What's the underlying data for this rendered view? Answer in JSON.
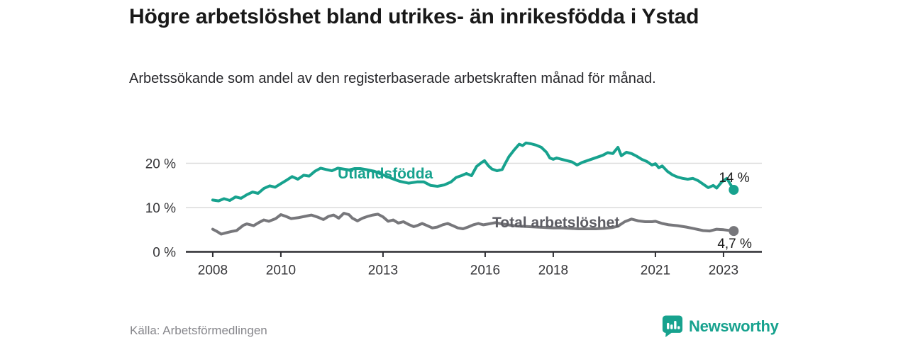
{
  "header": {
    "title": "Högre arbetslöshet bland utrikes- än inrikesfödda i Ystad",
    "subtitle": "Arbetssökande som andel av den registerbaserade arbetskraften månad för månad."
  },
  "footer": {
    "source": "Källa: Arbetsförmedlingen",
    "brand": "Newsworthy"
  },
  "colors": {
    "teal": "#17a28e",
    "gray_line": "#77777b",
    "gray_label": "#5d5d64",
    "axis": "#2e2e33",
    "gridline": "#dcdcdc",
    "tick_label": "#363639",
    "value_label": "#1c1c1c"
  },
  "chart_data": {
    "type": "line",
    "title": "Högre arbetslöshet bland utrikes- än inrikesfödda i Ystad",
    "subtitle": "Arbetssökande som andel av den registerbaserade arbetskraften månad för månad.",
    "xlabel": "",
    "ylabel": "",
    "grid": "horizontal-only",
    "x_range": [
      2007.21,
      2024.13
    ],
    "ylim": [
      0,
      26
    ],
    "x_ticks": [
      {
        "value": 2008,
        "label": "2008"
      },
      {
        "value": 2010,
        "label": "2010"
      },
      {
        "value": 2013,
        "label": "2013"
      },
      {
        "value": 2016,
        "label": "2016"
      },
      {
        "value": 2018,
        "label": "2018"
      },
      {
        "value": 2021,
        "label": "2021"
      },
      {
        "value": 2023,
        "label": "2023"
      }
    ],
    "y_ticks": [
      {
        "value": 0,
        "label": "0 %"
      },
      {
        "value": 10,
        "label": "10 %"
      },
      {
        "value": 20,
        "label": "20 %"
      }
    ],
    "series": [
      {
        "name": "Utlandsfödda",
        "color_key": "teal",
        "label_pos": {
          "x": 2011.67,
          "v": 16.56
        },
        "end_label": "14 %",
        "end_value": 14.0,
        "points": [
          [
            2008.0,
            11.7
          ],
          [
            2008.17,
            11.5
          ],
          [
            2008.33,
            12.0
          ],
          [
            2008.5,
            11.6
          ],
          [
            2008.67,
            12.4
          ],
          [
            2008.83,
            12.1
          ],
          [
            2009.0,
            12.9
          ],
          [
            2009.17,
            13.5
          ],
          [
            2009.33,
            13.2
          ],
          [
            2009.5,
            14.3
          ],
          [
            2009.67,
            14.9
          ],
          [
            2009.83,
            14.6
          ],
          [
            2010.0,
            15.4
          ],
          [
            2010.17,
            16.2
          ],
          [
            2010.33,
            17.0
          ],
          [
            2010.5,
            16.4
          ],
          [
            2010.67,
            17.3
          ],
          [
            2010.83,
            17.1
          ],
          [
            2011.0,
            18.2
          ],
          [
            2011.17,
            18.9
          ],
          [
            2011.33,
            18.6
          ],
          [
            2011.5,
            18.3
          ],
          [
            2011.67,
            18.9
          ],
          [
            2011.83,
            18.7
          ],
          [
            2012.0,
            18.5
          ],
          [
            2012.17,
            18.8
          ],
          [
            2012.33,
            18.8
          ],
          [
            2012.5,
            18.6
          ],
          [
            2012.75,
            18.2
          ],
          [
            2013.0,
            17.4
          ],
          [
            2013.25,
            16.6
          ],
          [
            2013.5,
            15.9
          ],
          [
            2013.75,
            15.5
          ],
          [
            2014.0,
            15.8
          ],
          [
            2014.2,
            15.8
          ],
          [
            2014.4,
            15.0
          ],
          [
            2014.6,
            14.8
          ],
          [
            2014.8,
            15.1
          ],
          [
            2015.0,
            15.8
          ],
          [
            2015.15,
            16.8
          ],
          [
            2015.3,
            17.2
          ],
          [
            2015.45,
            17.7
          ],
          [
            2015.6,
            17.2
          ],
          [
            2015.75,
            19.3
          ],
          [
            2015.9,
            20.2
          ],
          [
            2015.98,
            20.6
          ],
          [
            2016.1,
            19.4
          ],
          [
            2016.2,
            18.7
          ],
          [
            2016.35,
            18.3
          ],
          [
            2016.5,
            18.6
          ],
          [
            2016.6,
            20.1
          ],
          [
            2016.7,
            21.5
          ],
          [
            2016.85,
            23.0
          ],
          [
            2017.0,
            24.3
          ],
          [
            2017.1,
            24.0
          ],
          [
            2017.2,
            24.6
          ],
          [
            2017.35,
            24.4
          ],
          [
            2017.5,
            24.1
          ],
          [
            2017.65,
            23.6
          ],
          [
            2017.8,
            22.5
          ],
          [
            2017.9,
            21.2
          ],
          [
            2018.0,
            20.9
          ],
          [
            2018.1,
            21.2
          ],
          [
            2018.25,
            20.9
          ],
          [
            2018.4,
            20.6
          ],
          [
            2018.55,
            20.3
          ],
          [
            2018.7,
            19.6
          ],
          [
            2018.85,
            20.2
          ],
          [
            2019.0,
            20.6
          ],
          [
            2019.15,
            21.0
          ],
          [
            2019.3,
            21.4
          ],
          [
            2019.45,
            21.8
          ],
          [
            2019.6,
            22.4
          ],
          [
            2019.75,
            22.2
          ],
          [
            2019.9,
            23.6
          ],
          [
            2020.0,
            21.7
          ],
          [
            2020.15,
            22.5
          ],
          [
            2020.3,
            22.2
          ],
          [
            2020.45,
            21.6
          ],
          [
            2020.6,
            20.9
          ],
          [
            2020.75,
            20.4
          ],
          [
            2020.9,
            19.6
          ],
          [
            2021.0,
            19.9
          ],
          [
            2021.1,
            19.0
          ],
          [
            2021.2,
            19.4
          ],
          [
            2021.35,
            18.2
          ],
          [
            2021.5,
            17.4
          ],
          [
            2021.65,
            16.9
          ],
          [
            2021.8,
            16.6
          ],
          [
            2021.95,
            16.4
          ],
          [
            2022.1,
            16.6
          ],
          [
            2022.25,
            16.1
          ],
          [
            2022.4,
            15.3
          ],
          [
            2022.55,
            14.5
          ],
          [
            2022.7,
            15.0
          ],
          [
            2022.8,
            14.4
          ],
          [
            2022.95,
            15.8
          ],
          [
            2023.1,
            16.6
          ],
          [
            2023.3,
            14.0
          ]
        ]
      },
      {
        "name": "Total arbetslöshet",
        "color_key": "gray_line",
        "label_color_key": "gray_label",
        "label_pos": {
          "x": 2016.21,
          "v": 5.52
        },
        "end_label": "4,7 %",
        "end_value": 4.7,
        "points": [
          [
            2008.0,
            5.1
          ],
          [
            2008.1,
            4.7
          ],
          [
            2008.25,
            4.0
          ],
          [
            2008.4,
            4.3
          ],
          [
            2008.55,
            4.6
          ],
          [
            2008.7,
            4.8
          ],
          [
            2008.9,
            6.0
          ],
          [
            2009.0,
            6.3
          ],
          [
            2009.2,
            5.9
          ],
          [
            2009.35,
            6.6
          ],
          [
            2009.5,
            7.2
          ],
          [
            2009.65,
            6.9
          ],
          [
            2009.85,
            7.5
          ],
          [
            2010.0,
            8.4
          ],
          [
            2010.15,
            8.0
          ],
          [
            2010.3,
            7.5
          ],
          [
            2010.5,
            7.7
          ],
          [
            2010.7,
            8.0
          ],
          [
            2010.9,
            8.3
          ],
          [
            2011.1,
            7.8
          ],
          [
            2011.25,
            7.3
          ],
          [
            2011.4,
            8.0
          ],
          [
            2011.55,
            8.3
          ],
          [
            2011.7,
            7.6
          ],
          [
            2011.85,
            8.7
          ],
          [
            2012.0,
            8.4
          ],
          [
            2012.1,
            7.6
          ],
          [
            2012.25,
            7.0
          ],
          [
            2012.4,
            7.6
          ],
          [
            2012.55,
            8.0
          ],
          [
            2012.7,
            8.3
          ],
          [
            2012.85,
            8.5
          ],
          [
            2013.0,
            7.9
          ],
          [
            2013.15,
            6.9
          ],
          [
            2013.3,
            7.2
          ],
          [
            2013.45,
            6.5
          ],
          [
            2013.6,
            6.8
          ],
          [
            2013.75,
            6.2
          ],
          [
            2013.9,
            5.7
          ],
          [
            2014.0,
            5.9
          ],
          [
            2014.15,
            6.4
          ],
          [
            2014.3,
            5.9
          ],
          [
            2014.45,
            5.4
          ],
          [
            2014.6,
            5.6
          ],
          [
            2014.75,
            6.1
          ],
          [
            2014.9,
            6.4
          ],
          [
            2015.05,
            5.9
          ],
          [
            2015.2,
            5.4
          ],
          [
            2015.35,
            5.2
          ],
          [
            2015.5,
            5.6
          ],
          [
            2015.65,
            6.1
          ],
          [
            2015.8,
            6.4
          ],
          [
            2015.95,
            6.1
          ],
          [
            2016.1,
            6.3
          ],
          [
            2016.3,
            6.6
          ],
          [
            2016.5,
            6.3
          ],
          [
            2016.75,
            6.0
          ],
          [
            2017.0,
            5.8
          ],
          [
            2017.25,
            5.7
          ],
          [
            2017.5,
            5.6
          ],
          [
            2017.75,
            5.5
          ],
          [
            2018.0,
            5.4
          ],
          [
            2018.25,
            5.4
          ],
          [
            2018.5,
            5.3
          ],
          [
            2018.75,
            5.2
          ],
          [
            2019.0,
            5.2
          ],
          [
            2019.25,
            5.2
          ],
          [
            2019.5,
            5.3
          ],
          [
            2019.75,
            5.5
          ],
          [
            2019.9,
            5.8
          ],
          [
            2020.1,
            6.8
          ],
          [
            2020.3,
            7.4
          ],
          [
            2020.5,
            7.0
          ],
          [
            2020.7,
            6.8
          ],
          [
            2020.9,
            6.8
          ],
          [
            2021.0,
            6.9
          ],
          [
            2021.2,
            6.4
          ],
          [
            2021.4,
            6.1
          ],
          [
            2021.65,
            5.9
          ],
          [
            2021.9,
            5.6
          ],
          [
            2022.1,
            5.3
          ],
          [
            2022.4,
            4.8
          ],
          [
            2022.6,
            4.7
          ],
          [
            2022.8,
            5.1
          ],
          [
            2023.0,
            5.0
          ],
          [
            2023.3,
            4.7
          ]
        ]
      }
    ]
  }
}
